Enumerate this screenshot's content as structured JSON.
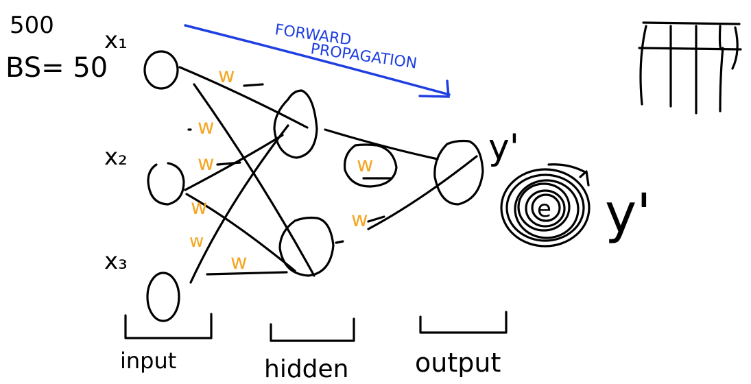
{
  "notes": {
    "line1": "500",
    "line2": "BS= 50"
  },
  "inputs": {
    "x1": "x₁",
    "x2": "x₂",
    "x3": "x₃"
  },
  "weights": {
    "label": "w"
  },
  "forward": {
    "line1": "FORWARD",
    "line2": "PROPAGATION"
  },
  "outputs": {
    "y_hat": "y'",
    "y_target": "y'",
    "e": "e"
  },
  "layers": {
    "input": "input",
    "hidden": "hidden",
    "output": "output"
  },
  "colors": {
    "ink": "#000000",
    "weight": "#f5a623",
    "forward": "#1f3fe0"
  }
}
